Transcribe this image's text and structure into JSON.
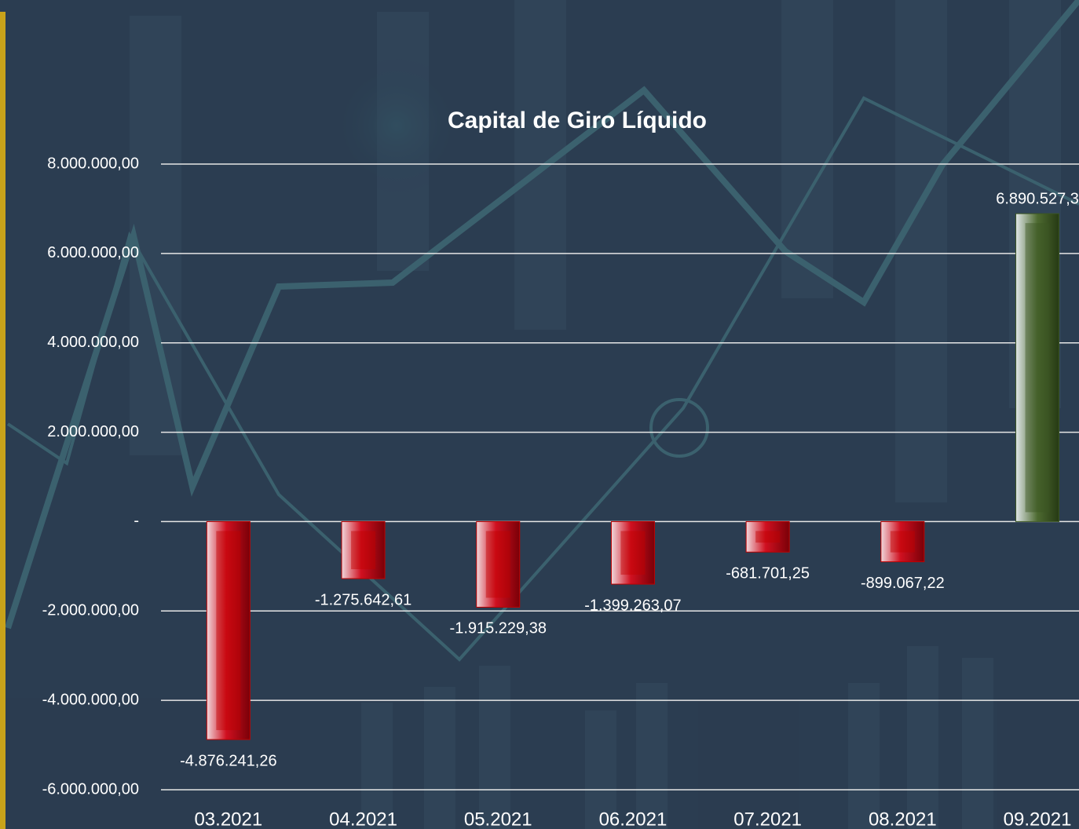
{
  "chart_data": {
    "type": "bar",
    "title": "Capital de Giro Líquido",
    "categories": [
      "03.2021",
      "04.2021",
      "05.2021",
      "06.2021",
      "07.2021",
      "08.2021",
      "09.2021"
    ],
    "values": [
      -4876241.26,
      -1275642.61,
      -1915229.38,
      -1399263.07,
      -681701.25,
      -899067.22,
      6890527.3
    ],
    "value_labels": [
      "-4.876.241,26",
      "-1.275.642,61",
      "-1.915.229,38",
      "-1.399.263,07",
      "-681.701,25",
      "-899.067,22",
      "6.890.527,3"
    ],
    "color_negative": "#c00000",
    "color_positive": "#3b5623",
    "ylim": [
      -6000000,
      8000000
    ],
    "yticks": [
      {
        "value": -6000000,
        "label": "-6.000.000,00"
      },
      {
        "value": -4000000,
        "label": "-4.000.000,00"
      },
      {
        "value": -2000000,
        "label": "-2.000.000,00"
      },
      {
        "value": 0,
        "label": "-"
      },
      {
        "value": 2000000,
        "label": "2.000.000,00"
      },
      {
        "value": 4000000,
        "label": "4.000.000,00"
      },
      {
        "value": 6000000,
        "label": "6.000.000,00"
      },
      {
        "value": 8000000,
        "label": "8.000.000,00"
      }
    ],
    "grid": true
  }
}
